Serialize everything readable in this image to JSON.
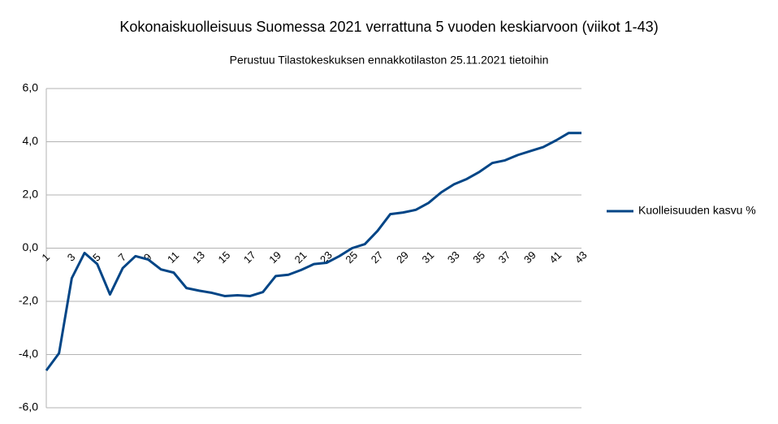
{
  "chart_data": {
    "type": "line",
    "title": "Kokonaiskuolleisuus Suomessa 2021 verrattuna 5 vuoden keskiarvoon (viikot 1-43)",
    "subtitle": "Perustuu Tilastokeskuksen ennakkotilaston 25.11.2021 tietoihin",
    "categories": [
      "1",
      null,
      "3",
      null,
      "5",
      null,
      "7",
      null,
      "9",
      null,
      "11",
      null,
      "13",
      null,
      "15",
      null,
      "17",
      null,
      "19",
      null,
      "21",
      null,
      "23",
      null,
      "25",
      null,
      "27",
      null,
      "29",
      null,
      "31",
      null,
      "33",
      null,
      "35",
      null,
      "37",
      null,
      "39",
      null,
      "41",
      null,
      "43"
    ],
    "series": [
      {
        "name": "Kuolleisuuden kasvu %",
        "color": "#004586",
        "values": [
          -4.6,
          -3.95,
          -1.13,
          -0.18,
          -0.6,
          -1.74,
          -0.75,
          -0.3,
          -0.43,
          -0.8,
          -0.92,
          -1.5,
          -1.6,
          -1.68,
          -1.8,
          -1.77,
          -1.8,
          -1.65,
          -1.05,
          -1.0,
          -0.82,
          -0.6,
          -0.55,
          -0.3,
          0.0,
          0.15,
          0.65,
          1.28,
          1.34,
          1.44,
          1.7,
          2.1,
          2.4,
          2.6,
          2.87,
          3.2,
          3.3,
          3.5,
          3.65,
          3.8,
          4.05,
          4.33,
          4.33
        ]
      }
    ],
    "ylim": [
      -6,
      6
    ],
    "yticks": [
      {
        "value": -6,
        "label": "-6,0"
      },
      {
        "value": -4,
        "label": "-4,0"
      },
      {
        "value": -2,
        "label": "-2,0"
      },
      {
        "value": 0,
        "label": "0,0"
      },
      {
        "value": 2,
        "label": "2,0"
      },
      {
        "value": 4,
        "label": "4,0"
      },
      {
        "value": 6,
        "label": "6,0"
      }
    ],
    "grid": true,
    "legend": "right"
  }
}
